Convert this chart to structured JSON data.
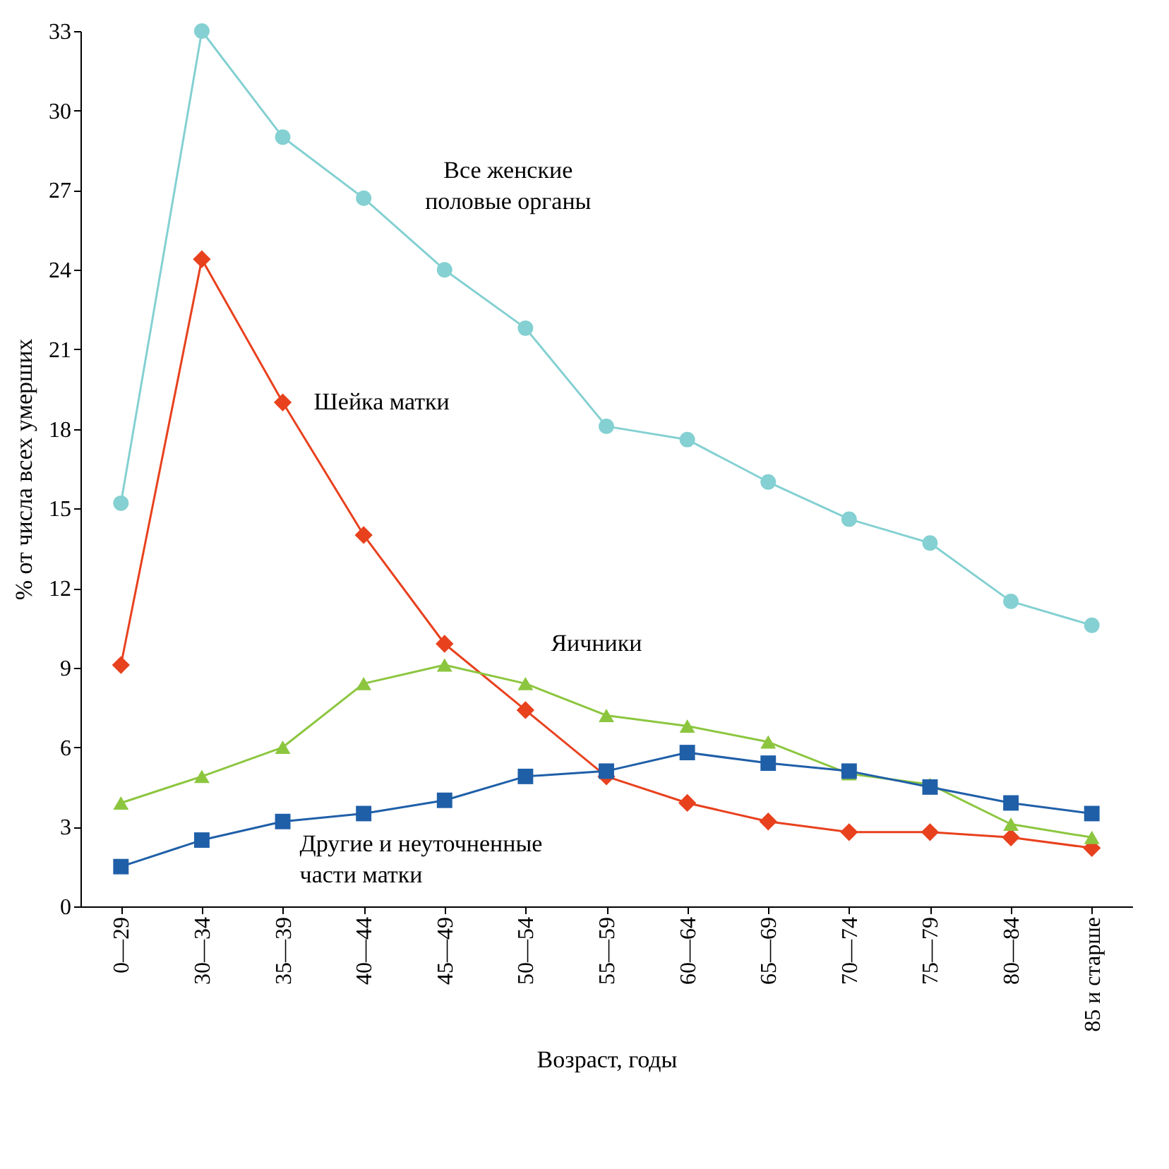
{
  "chart_data": {
    "type": "line",
    "xlabel": "Возраст, годы",
    "ylabel": "% от числа всех умерших",
    "categories": [
      "0—29",
      "30—34",
      "35—39",
      "40—44",
      "45—49",
      "50—54",
      "55—59",
      "60—64",
      "65—69",
      "70—74",
      "75—79",
      "80—84",
      "85 и старше"
    ],
    "ylim": [
      0,
      33
    ],
    "yticks": [
      0,
      3,
      6,
      9,
      12,
      15,
      18,
      21,
      24,
      27,
      30,
      33
    ],
    "grid": false,
    "series": [
      {
        "name": "Все женские половые органы",
        "color": "#84d0d2",
        "marker": "circle",
        "values": [
          15.2,
          33,
          29,
          26.7,
          24,
          21.8,
          18.1,
          17.6,
          16,
          14.6,
          13.7,
          11.5,
          10.6
        ]
      },
      {
        "name": "Шейка матки",
        "color": "#e8411e",
        "marker": "diamond",
        "values": [
          9.1,
          24.4,
          19,
          14,
          9.9,
          7.4,
          4.9,
          3.9,
          3.2,
          2.8,
          2.8,
          2.6,
          2.2
        ]
      },
      {
        "name": "Яичники",
        "color": "#8cc63f",
        "marker": "triangle",
        "values": [
          3.9,
          4.9,
          6,
          8.4,
          9.1,
          8.4,
          7.2,
          6.8,
          6.2,
          5,
          4.6,
          3.1,
          2.6
        ]
      },
      {
        "name": "Другие и неуточненные части матки",
        "color": "#1f5fa8",
        "marker": "square",
        "values": [
          1.5,
          2.5,
          3.2,
          3.5,
          4,
          4.9,
          5.1,
          5.8,
          5.4,
          5.1,
          4.5,
          3.9,
          3.5
        ]
      }
    ]
  }
}
